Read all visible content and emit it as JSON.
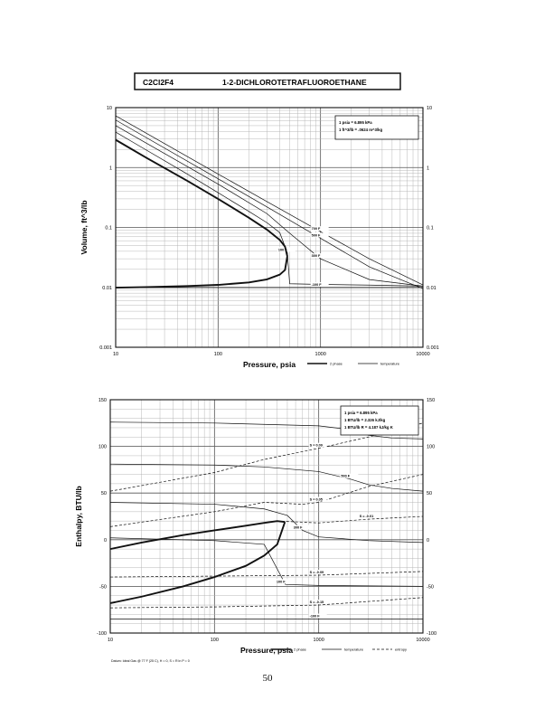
{
  "header": {
    "formula": "C2Cl2F4",
    "name": "1-2-DICHLOROTETRAFLUOROETHANE"
  },
  "page_number": "50",
  "footer_note": "Datum: Ideal Gas @ 77 F (25 C), H = 0, S = R ln P = 0",
  "colors": {
    "ink": "#111111",
    "grid_minor": "#b0b0b0",
    "grid_major": "#555555",
    "background": "#ffffff"
  },
  "chart_data": [
    {
      "type": "line",
      "id": "volume_chart",
      "xscale": "log",
      "yscale": "log",
      "xlim": [
        10,
        10000
      ],
      "ylim": [
        0.001,
        10
      ],
      "xticks": [
        10,
        100,
        1000,
        10000
      ],
      "xtick_labels": [
        "10",
        "100",
        "1000",
        "10000"
      ],
      "yticks": [
        0.001,
        0.01,
        0.1,
        1,
        10
      ],
      "ytick_labels": [
        "0.001",
        "0.01",
        "0.1",
        "1",
        "10"
      ],
      "xlabel": "Pressure,  psia",
      "ylabel": "Volume, ft^3/lb",
      "grid": true,
      "note_lines": [
        "1 psia  =  6.895 kPa",
        "1 ft^3/lb  =  .0624 m^3/kg"
      ],
      "note_position": "top-right",
      "legend": [
        {
          "name": "2 phase",
          "style": "bold"
        },
        {
          "name": "temperature",
          "style": "thin"
        }
      ],
      "dome": {
        "name": "2 phase",
        "vapor": [
          [
            10,
            2.9
          ],
          [
            20,
            1.45
          ],
          [
            50,
            0.6
          ],
          [
            100,
            0.3
          ],
          [
            200,
            0.145
          ],
          [
            300,
            0.092
          ],
          [
            400,
            0.062
          ],
          [
            450,
            0.048
          ],
          [
            474,
            0.033
          ]
        ],
        "liquid": [
          [
            10,
            0.0099
          ],
          [
            20,
            0.0101
          ],
          [
            50,
            0.0105
          ],
          [
            100,
            0.011
          ],
          [
            200,
            0.0121
          ],
          [
            300,
            0.0136
          ],
          [
            400,
            0.0163
          ],
          [
            450,
            0.0195
          ],
          [
            474,
            0.033
          ]
        ]
      },
      "series": [
        {
          "name": "700 F",
          "points": [
            [
              10,
              7.3
            ],
            [
              100,
              0.78
            ],
            [
              300,
              0.27
            ],
            [
              1000,
              0.085
            ],
            [
              3000,
              0.03
            ],
            [
              10000,
              0.011
            ]
          ]
        },
        {
          "name": "500 F",
          "points": [
            [
              10,
              6.2
            ],
            [
              100,
              0.65
            ],
            [
              300,
              0.22
            ],
            [
              1000,
              0.066
            ],
            [
              3000,
              0.022
            ],
            [
              10000,
              0.0095
            ]
          ]
        },
        {
          "name": "300 F",
          "points": [
            [
              10,
              5.0
            ],
            [
              100,
              0.53
            ],
            [
              300,
              0.17
            ],
            [
              500,
              0.08
            ],
            [
              1000,
              0.03
            ],
            [
              3000,
              0.0135
            ],
            [
              10000,
              0.0105
            ]
          ]
        },
        {
          "name": "100 F",
          "points": [
            [
              10,
              3.9
            ],
            [
              15,
              2.6
            ],
            [
              50,
              0.78
            ],
            [
              100,
              0.38
            ],
            [
              200,
              0.185
            ],
            [
              300,
              0.12
            ],
            [
              400,
              0.082
            ],
            [
              474,
              0.038
            ],
            [
              500,
              0.0115
            ],
            [
              1000,
              0.0112
            ],
            [
              3000,
              0.0109
            ],
            [
              10000,
              0.0105
            ]
          ]
        },
        {
          "name": "-100 F",
          "points": [
            [
              10,
              0.0099
            ],
            [
              100,
              0.0099
            ],
            [
              1000,
              0.0099
            ],
            [
              10000,
              0.0099
            ]
          ]
        }
      ]
    },
    {
      "type": "line",
      "id": "enthalpy_chart",
      "xscale": "log",
      "yscale": "linear",
      "xlim": [
        10,
        10000
      ],
      "ylim": [
        -100,
        150
      ],
      "xticks": [
        10,
        100,
        1000,
        10000
      ],
      "xtick_labels": [
        "10",
        "100",
        "1000",
        "10000"
      ],
      "yticks": [
        -100,
        -50,
        0,
        50,
        100,
        150
      ],
      "ytick_labels": [
        "-100",
        "-50",
        "0",
        "50",
        "100",
        "150"
      ],
      "xlabel": "Pressure,  psia",
      "ylabel": "Enthalpy, BTU/lb",
      "grid": true,
      "note_lines": [
        "1 psia  =  6.895 kPa",
        "1 BTU/lb  =  2.326 kJ/kg",
        "1 BTU/lb R  =  4.187 kJ/kg K"
      ],
      "note_position": "top-right",
      "legend": [
        {
          "name": "2 phase",
          "style": "bold"
        },
        {
          "name": "temperature",
          "style": "thin"
        },
        {
          "name": "entropy",
          "style": "dashed"
        }
      ],
      "dome": {
        "name": "2 phase",
        "vapor": [
          [
            10,
            -10
          ],
          [
            20,
            -3
          ],
          [
            50,
            5
          ],
          [
            100,
            10
          ],
          [
            200,
            15
          ],
          [
            300,
            18
          ],
          [
            400,
            20
          ],
          [
            474,
            19
          ]
        ],
        "liquid": [
          [
            10,
            -68
          ],
          [
            20,
            -61
          ],
          [
            50,
            -50
          ],
          [
            100,
            -40
          ],
          [
            200,
            -28
          ],
          [
            300,
            -17
          ],
          [
            400,
            -5
          ],
          [
            474,
            19
          ]
        ]
      },
      "series": [
        {
          "name": "700 F",
          "style": "temperature",
          "points": [
            [
              10,
              126
            ],
            [
              100,
              125
            ],
            [
              1000,
              122
            ],
            [
              2000,
              118
            ],
            [
              3000,
              112
            ],
            [
              5000,
              109
            ],
            [
              10000,
              108
            ]
          ]
        },
        {
          "name": "500 F",
          "style": "temperature",
          "points": [
            [
              10,
              81
            ],
            [
              100,
              80
            ],
            [
              300,
              78
            ],
            [
              1000,
              73
            ],
            [
              2000,
              65
            ],
            [
              3000,
              59
            ],
            [
              5000,
              55
            ],
            [
              10000,
              52
            ]
          ]
        },
        {
          "name": "300 F",
          "style": "temperature",
          "points": [
            [
              10,
              40
            ],
            [
              100,
              38
            ],
            [
              300,
              33
            ],
            [
              500,
              26
            ],
            [
              700,
              10
            ],
            [
              1000,
              3
            ],
            [
              3000,
              -1
            ],
            [
              10000,
              -3
            ]
          ]
        },
        {
          "name": "100 F",
          "style": "temperature",
          "points": [
            [
              10,
              2
            ],
            [
              100,
              -1
            ],
            [
              300,
              -5
            ],
            [
              480,
              -48
            ],
            [
              1000,
              -49
            ],
            [
              10000,
              -50
            ]
          ]
        },
        {
          "name": "-100 F",
          "style": "temperature",
          "points": [
            [
              10,
              -85
            ],
            [
              100,
              -85
            ],
            [
              1000,
              -85
            ],
            [
              10000,
              -85
            ]
          ]
        },
        {
          "name": "S = 0.09",
          "style": "entropy",
          "points": [
            [
              10,
              52
            ],
            [
              100,
              72
            ],
            [
              300,
              86
            ],
            [
              1000,
              98
            ],
            [
              3000,
              110
            ],
            [
              10000,
              125
            ]
          ]
        },
        {
          "name": "S = 0.05",
          "style": "entropy",
          "points": [
            [
              10,
              14
            ],
            [
              100,
              30
            ],
            [
              300,
              40
            ],
            [
              700,
              38
            ],
            [
              1000,
              40
            ],
            [
              3000,
              57
            ],
            [
              10000,
              70
            ]
          ]
        },
        {
          "name": "S = -0.01",
          "style": "entropy",
          "points": [
            [
              400,
              20
            ],
            [
              1000,
              18
            ],
            [
              3000,
              22
            ],
            [
              10000,
              25
            ]
          ]
        },
        {
          "name": "S = -0.09",
          "style": "entropy",
          "points": [
            [
              10,
              -40
            ],
            [
              100,
              -39
            ],
            [
              1000,
              -38
            ],
            [
              10000,
              -34
            ]
          ]
        },
        {
          "name": "S = -0.15",
          "style": "entropy",
          "points": [
            [
              10,
              -73
            ],
            [
              100,
              -72
            ],
            [
              1000,
              -70
            ],
            [
              10000,
              -62
            ]
          ]
        }
      ]
    }
  ]
}
